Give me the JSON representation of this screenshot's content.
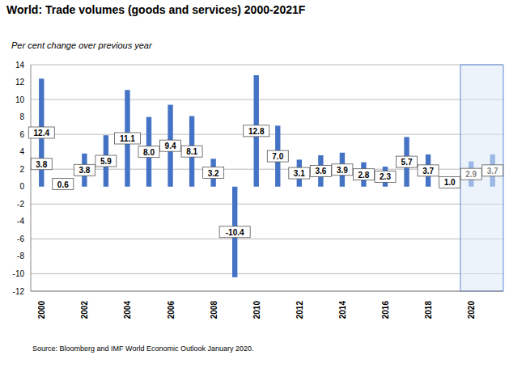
{
  "chart_data": {
    "type": "bar",
    "title": "World: Trade volumes (goods and services) 2000-2021F",
    "subtitle": "Per cent change over previous year",
    "source": "Source: Bloomberg and IMF World Economic Outlook January 2020.",
    "categories": [
      "2000",
      null,
      "2002",
      null,
      "2004",
      null,
      "2006",
      null,
      "2008",
      null,
      "2010",
      null,
      "2012",
      null,
      "2014",
      null,
      "2016",
      null,
      "2018",
      null,
      "2020",
      null
    ],
    "values": [
      12.4,
      0.6,
      3.8,
      5.9,
      11.1,
      8.0,
      9.4,
      8.1,
      3.2,
      -10.4,
      12.8,
      7.0,
      3.1,
      3.6,
      3.9,
      2.8,
      2.3,
      5.7,
      3.7,
      1.0,
      2.9,
      3.7
    ],
    "value_labels": [
      "12.4",
      "0.6",
      "3.8",
      "5.9",
      "11.1",
      "8.0",
      "9.4",
      "8.1",
      "3.2",
      "-10.4",
      "12.8",
      "7.0",
      "3.1",
      "3.6",
      "3.9",
      "2.8",
      "2.3",
      "5.7",
      "3.7",
      "1.0",
      "2.9",
      "3.7"
    ],
    "colors": [
      "#4472c4",
      "#4472c4",
      "#4472c4",
      "#4472c4",
      "#4472c4",
      "#4472c4",
      "#4472c4",
      "#4472c4",
      "#4472c4",
      "#4472c4",
      "#4472c4",
      "#4472c4",
      "#4472c4",
      "#4472c4",
      "#4472c4",
      "#4472c4",
      "#4472c4",
      "#4472c4",
      "#4472c4",
      "#4472c4",
      "#9db8e6",
      "#9db8e6"
    ],
    "annotations": [
      {
        "text": "3.8",
        "x": 0,
        "y": 2.6
      }
    ],
    "ylim": [
      -12,
      14
    ],
    "yticks": [
      -12,
      -10,
      -8,
      -6,
      -4,
      -2,
      0,
      2,
      4,
      6,
      8,
      10,
      12,
      14
    ],
    "grid": true,
    "data_labels": true
  }
}
